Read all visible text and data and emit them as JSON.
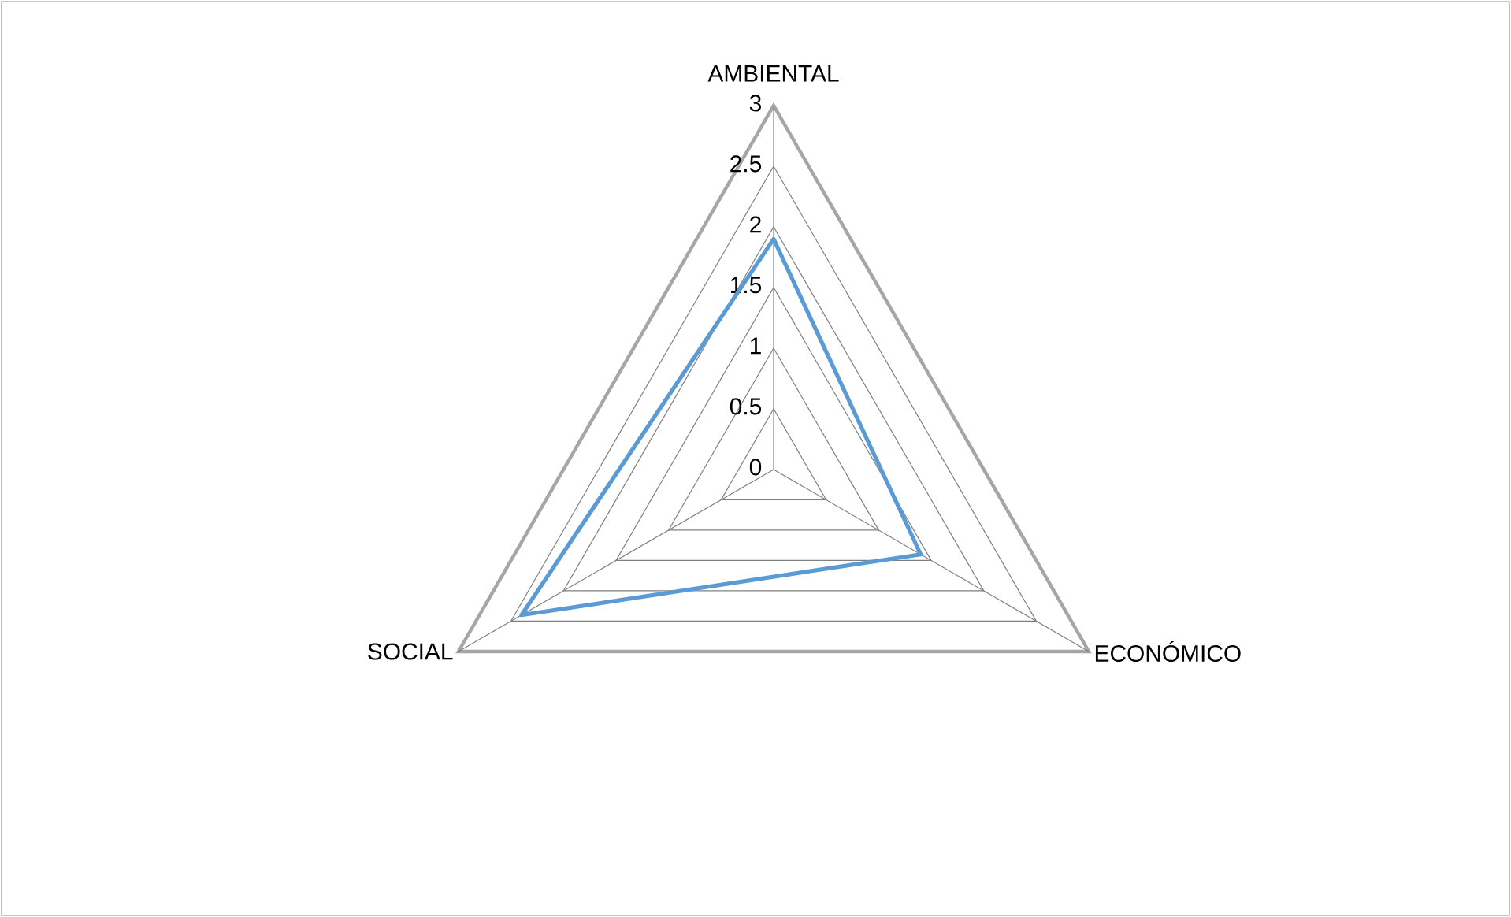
{
  "chart_data": {
    "type": "radar",
    "categories": [
      "AMBIENTAL",
      "ECONÓMICO",
      "SOCIAL"
    ],
    "series": [
      {
        "color": "#5b9bd5",
        "values": [
          1.9,
          1.4,
          2.4
        ]
      }
    ],
    "ylim": [
      0,
      3
    ],
    "yticks": [
      0,
      0.5,
      1,
      1.5,
      2,
      2.5,
      3
    ],
    "grid": true
  }
}
